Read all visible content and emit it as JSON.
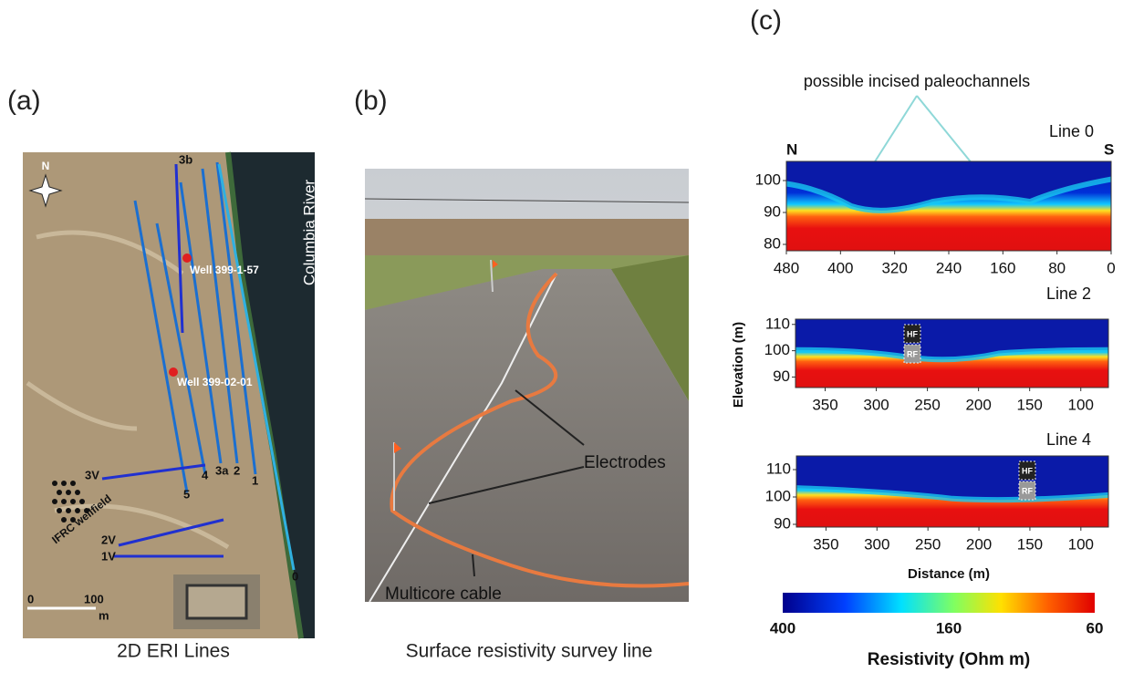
{
  "panel_a": {
    "label": "(a)",
    "caption": "2D ERI Lines",
    "north": "N",
    "river": "Columbia River",
    "wells": [
      "Well 399-1-57",
      "Well 399-02-01"
    ],
    "wellfield": "IFRC wellfield",
    "line_labels": [
      "3b",
      "3V",
      "4",
      "3a",
      "2",
      "1",
      "5",
      "2V",
      "1V",
      "0"
    ],
    "scale": [
      "0",
      "100",
      "m"
    ]
  },
  "panel_b": {
    "label": "(b)",
    "caption": "Surface resistivity survey line",
    "annotations": [
      "Electrodes",
      "Multicore cable"
    ]
  },
  "panel_c": {
    "label": "(c)",
    "annotation": "possible incised paleochannels",
    "y_label": "Elevation (m)",
    "x_label": "Distance (m)",
    "sections": [
      {
        "title": "Line 0",
        "ends": [
          "N",
          "S"
        ],
        "xlim": [
          480,
          0
        ],
        "ylim": [
          78,
          106
        ],
        "xticks": [
          480,
          400,
          320,
          240,
          160,
          80,
          0
        ],
        "yticks": [
          100,
          90,
          80
        ]
      },
      {
        "title": "Line 2",
        "xlim": [
          379,
          73
        ],
        "ylim": [
          86,
          112
        ],
        "xticks": [
          350,
          300,
          250,
          200,
          150,
          100
        ],
        "yticks": [
          110,
          100,
          90
        ],
        "markers": [
          "HF",
          "RF"
        ]
      },
      {
        "title": "Line 4",
        "xlim": [
          379,
          73
        ],
        "ylim": [
          89,
          115
        ],
        "xticks": [
          350,
          300,
          250,
          200,
          150,
          100
        ],
        "yticks": [
          110,
          100,
          90
        ],
        "markers": [
          "HF",
          "RF"
        ]
      }
    ],
    "colorbar": {
      "ticks": [
        "400",
        "160",
        "60"
      ],
      "label": "Resistivity (Ohm m)"
    }
  }
}
